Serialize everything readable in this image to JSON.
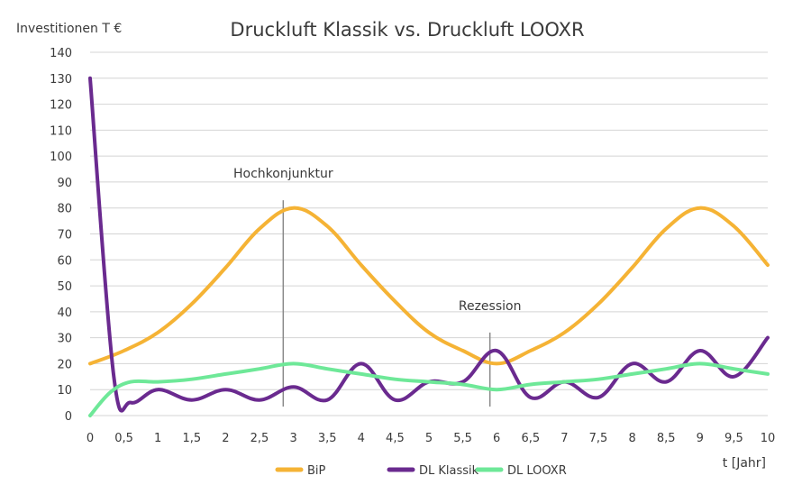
{
  "chart_data": {
    "type": "line",
    "title": "Druckluft Klassik vs. Druckluft LOOXR",
    "ylabel": "Investitionen T €",
    "xlabel": "t [Jahr]",
    "ylim": [
      0,
      140
    ],
    "xlim": [
      0,
      10
    ],
    "y_ticks": [
      "0",
      "10",
      "20",
      "30",
      "40",
      "50",
      "60",
      "70",
      "80",
      "90",
      "100",
      "110",
      "120",
      "130",
      "140"
    ],
    "x_ticks": [
      "0",
      "0,5",
      "1",
      "1,5",
      "2",
      "2,5",
      "3",
      "3,5",
      "4",
      "4,5",
      "5",
      "5,5",
      "6",
      "6,5",
      "7",
      "7,5",
      "8",
      "8,5",
      "9",
      "9,5",
      "10"
    ],
    "grid": "horizontal",
    "legend_position": "bottom",
    "series": [
      {
        "name": "BiP",
        "color": "#f5b335",
        "x": [
          0,
          0.5,
          1,
          1.5,
          2,
          2.5,
          3,
          3.5,
          4,
          4.5,
          5,
          5.5,
          6,
          6.5,
          7,
          7.5,
          8,
          8.5,
          9,
          9.5,
          10
        ],
        "y": [
          20,
          25,
          32,
          43,
          57,
          72,
          80,
          73,
          58,
          44,
          32,
          25,
          20,
          25,
          32,
          43,
          57,
          72,
          80,
          73,
          58
        ]
      },
      {
        "name": "DL Klassik",
        "color": "#6a2a8f",
        "x": [
          0,
          0.35,
          0.6,
          1,
          1.5,
          2,
          2.5,
          3,
          3.5,
          4,
          4.5,
          5,
          5.5,
          6,
          6.5,
          7,
          7.5,
          8,
          8.5,
          9,
          9.5,
          10
        ],
        "y": [
          130,
          15,
          5,
          10,
          6,
          10,
          6,
          11,
          6,
          20,
          6,
          13,
          13,
          25,
          7,
          13,
          7,
          20,
          13,
          25,
          15,
          30
        ]
      },
      {
        "name": "DL LOOXR",
        "color": "#6ee898",
        "x": [
          0,
          0.3,
          0.6,
          1,
          1.5,
          2,
          2.5,
          3,
          3.5,
          4,
          4.5,
          5,
          5.5,
          6,
          6.5,
          7,
          7.5,
          8,
          8.5,
          9,
          9.5,
          10
        ],
        "y": [
          0,
          9,
          13,
          13,
          14,
          16,
          18,
          20,
          18,
          16,
          14,
          13,
          12,
          10,
          12,
          13,
          14,
          16,
          18,
          20,
          18,
          16
        ]
      }
    ],
    "annotations": [
      {
        "text": "Hochkonjunktur",
        "x": 2.85,
        "y_top": 83
      },
      {
        "text": "Rezession",
        "x": 5.9,
        "y_top": 32
      }
    ]
  }
}
